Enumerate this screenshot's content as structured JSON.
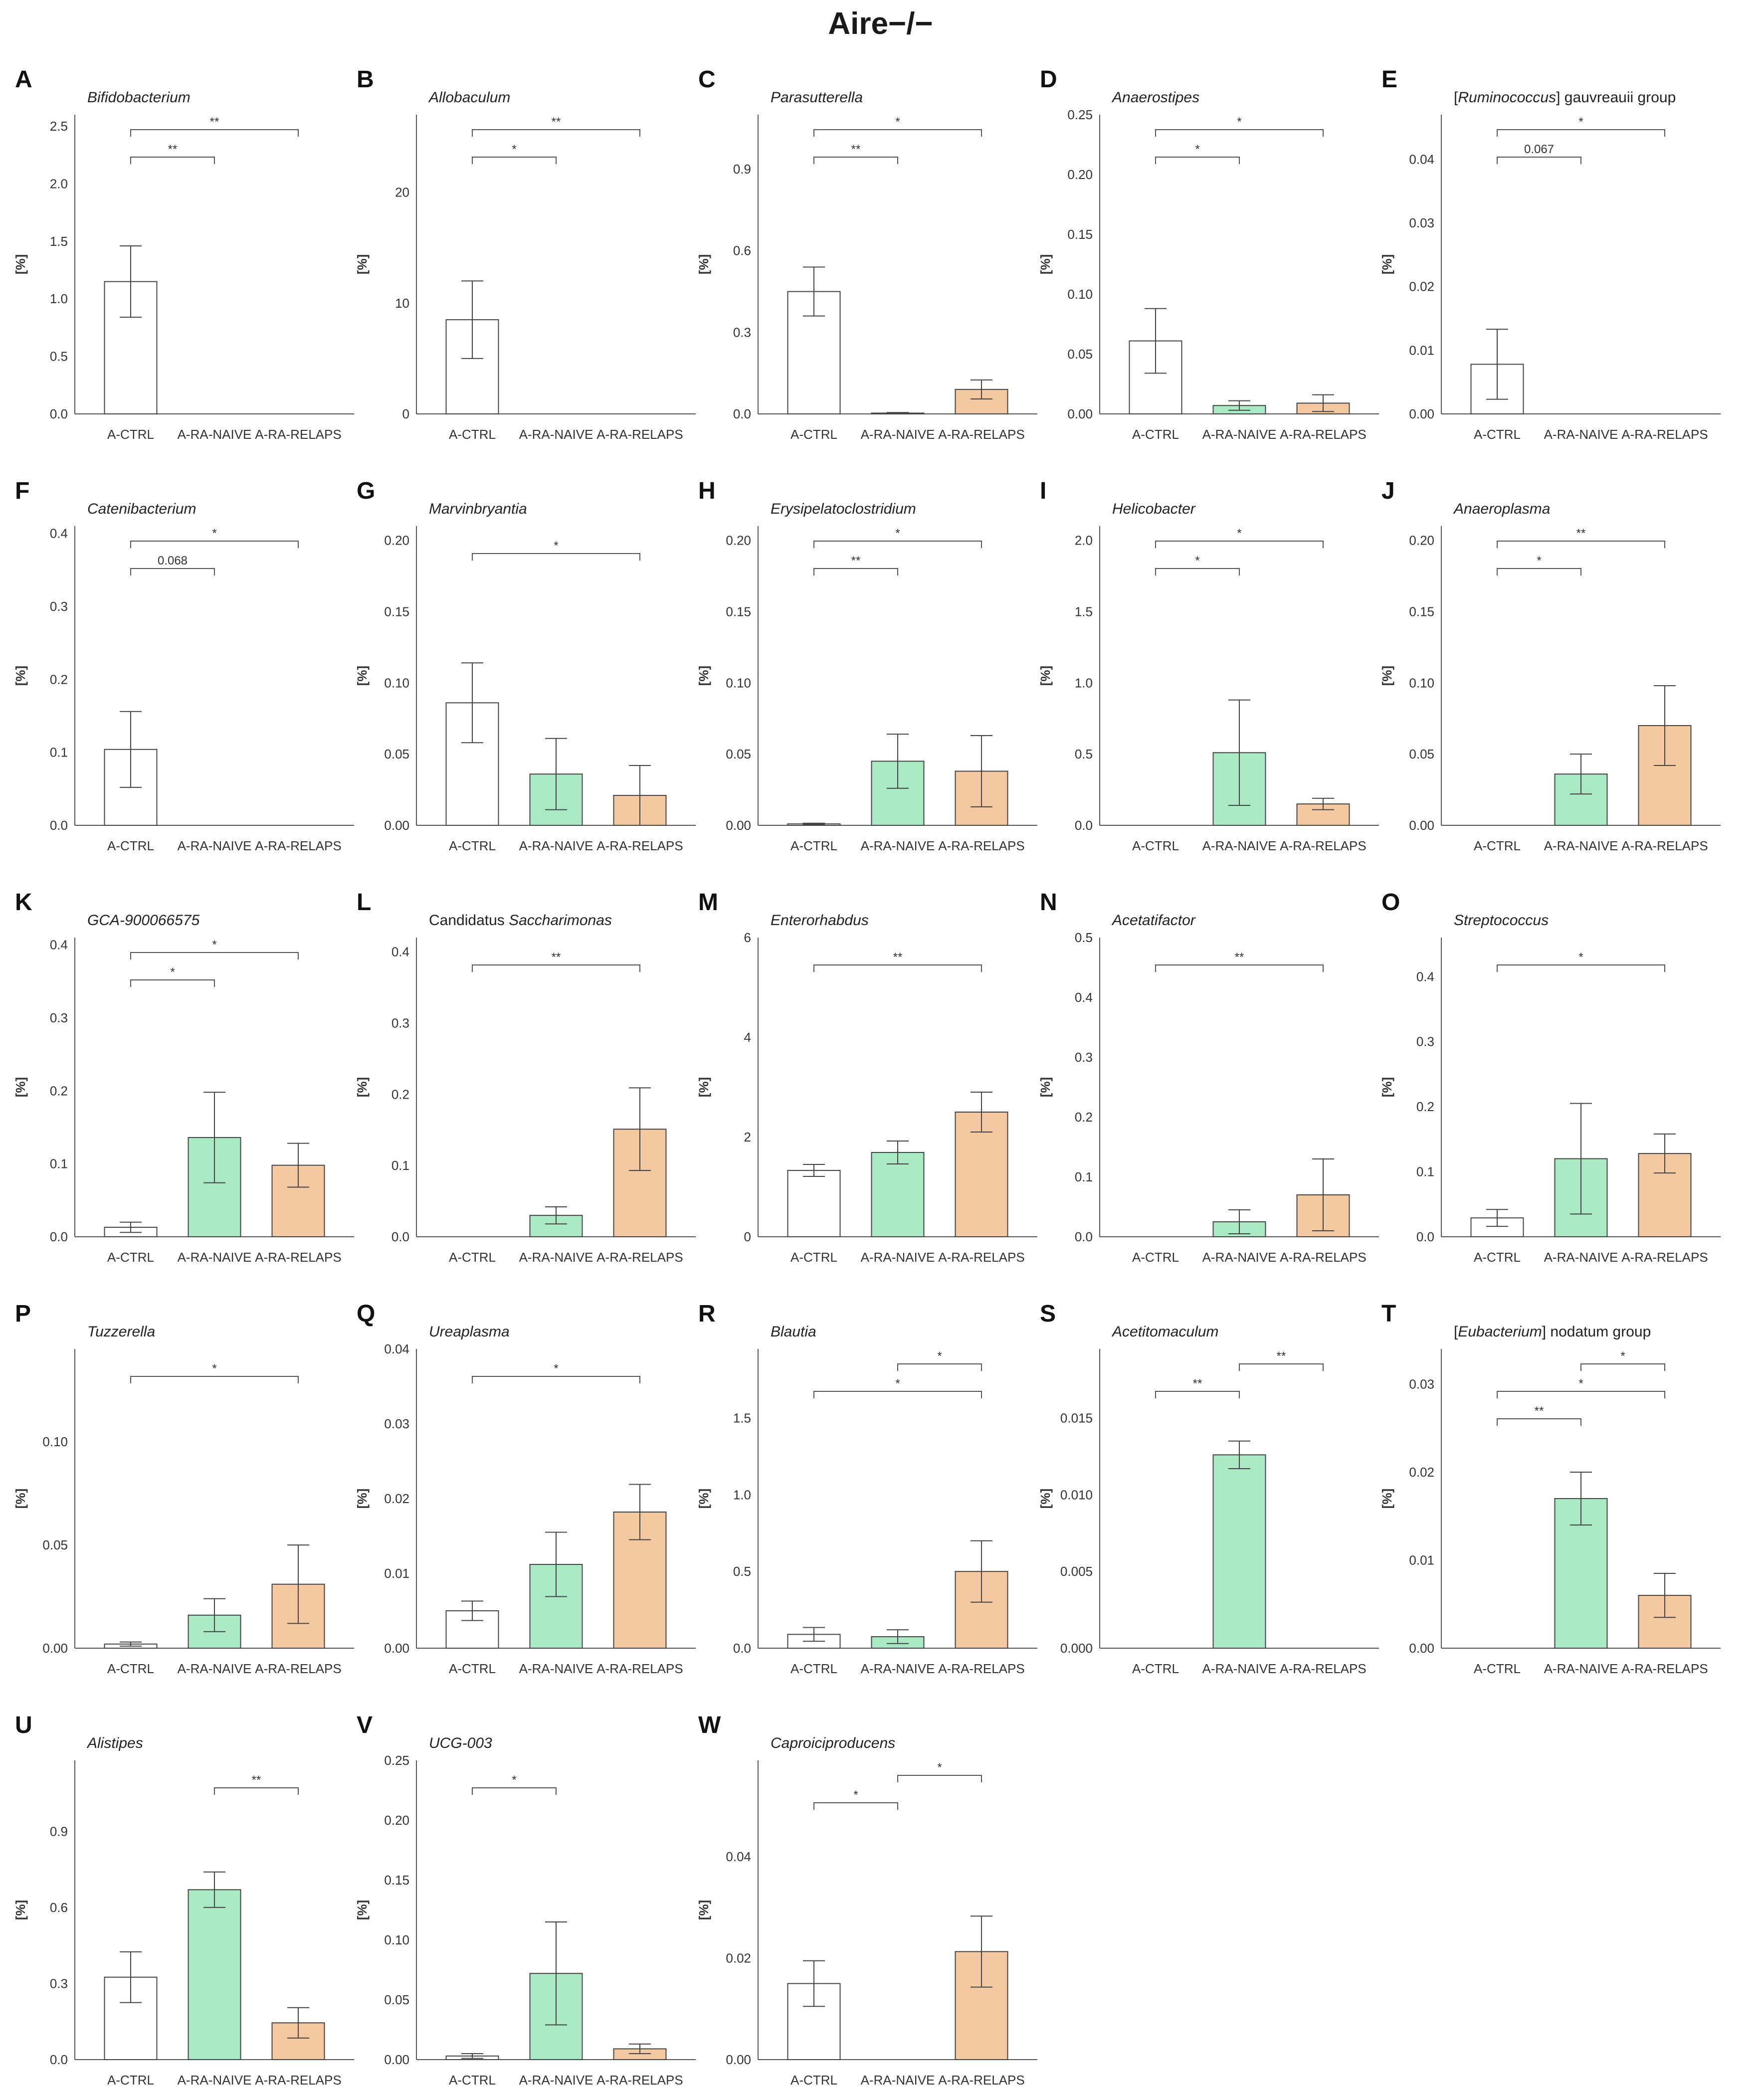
{
  "figure_title": "Aire−/−",
  "chart_data": [
    {
      "letter": "A",
      "type": "bar",
      "title": "Bifidobacterium",
      "title_style": "italic",
      "ylabel": "[%]",
      "categories": [
        "A-CTRL",
        "A-RA-NAIVE",
        "A-RA-RELAPS"
      ],
      "values": [
        1.15,
        0,
        0
      ],
      "errors": [
        0.31,
        0,
        0
      ],
      "ylim": [
        0,
        2.6
      ],
      "yticks": [
        "0.0",
        "0.5",
        "1.0",
        "1.5",
        "2.0",
        "2.5"
      ],
      "comparisons": [
        {
          "from": 0,
          "to": 1,
          "label": "**"
        },
        {
          "from": 0,
          "to": 2,
          "label": "**"
        }
      ]
    },
    {
      "letter": "B",
      "type": "bar",
      "title": "Allobaculum",
      "title_style": "italic",
      "ylabel": "[%]",
      "categories": [
        "A-CTRL",
        "A-RA-NAIVE",
        "A-RA-RELAPS"
      ],
      "values": [
        8.5,
        0,
        0
      ],
      "errors": [
        3.5,
        0,
        0
      ],
      "ylim": [
        0,
        27
      ],
      "yticks": [
        "0",
        "10",
        "20"
      ],
      "comparisons": [
        {
          "from": 0,
          "to": 1,
          "label": "*"
        },
        {
          "from": 0,
          "to": 2,
          "label": "**"
        }
      ]
    },
    {
      "letter": "C",
      "type": "bar",
      "title": "Parasutterella",
      "title_style": "italic",
      "ylabel": "[%]",
      "categories": [
        "A-CTRL",
        "A-RA-NAIVE",
        "A-RA-RELAPS"
      ],
      "values": [
        0.45,
        0.003,
        0.09
      ],
      "errors": [
        0.09,
        0.002,
        0.035
      ],
      "ylim": [
        0,
        1.1
      ],
      "yticks": [
        "0.0",
        "0.3",
        "0.6",
        "0.9"
      ],
      "comparisons": [
        {
          "from": 0,
          "to": 1,
          "label": "**"
        },
        {
          "from": 0,
          "to": 2,
          "label": "*"
        }
      ]
    },
    {
      "letter": "D",
      "type": "bar",
      "title": "Anaerostipes",
      "title_style": "italic",
      "ylabel": "[%]",
      "categories": [
        "A-CTRL",
        "A-RA-NAIVE",
        "A-RA-RELAPS"
      ],
      "values": [
        0.061,
        0.007,
        0.009
      ],
      "errors": [
        0.027,
        0.004,
        0.007
      ],
      "ylim": [
        0,
        0.25
      ],
      "yticks": [
        "0.00",
        "0.05",
        "0.10",
        "0.15",
        "0.20",
        "0.25"
      ],
      "comparisons": [
        {
          "from": 0,
          "to": 1,
          "label": "*"
        },
        {
          "from": 0,
          "to": 2,
          "label": "*"
        }
      ]
    },
    {
      "letter": "E",
      "type": "bar",
      "title": "[Ruminococcus] gauvreauii group",
      "title_style": "mixed",
      "ylabel": "[%]",
      "categories": [
        "A-CTRL",
        "A-RA-NAIVE",
        "A-RA-RELAPS"
      ],
      "values": [
        0.0078,
        0,
        0
      ],
      "errors": [
        0.0055,
        0,
        0
      ],
      "ylim": [
        0,
        0.047
      ],
      "yticks": [
        "0.00",
        "0.01",
        "0.02",
        "0.03",
        "0.04"
      ],
      "comparisons": [
        {
          "from": 0,
          "to": 1,
          "label": "0.067"
        },
        {
          "from": 0,
          "to": 2,
          "label": "*"
        }
      ]
    },
    {
      "letter": "F",
      "type": "bar",
      "title": "Catenibacterium",
      "title_style": "italic",
      "ylabel": "[%]",
      "categories": [
        "A-CTRL",
        "A-RA-NAIVE",
        "A-RA-RELAPS"
      ],
      "values": [
        0.104,
        0,
        0
      ],
      "errors": [
        0.052,
        0,
        0
      ],
      "ylim": [
        0,
        0.41
      ],
      "yticks": [
        "0.0",
        "0.1",
        "0.2",
        "0.3",
        "0.4"
      ],
      "comparisons": [
        {
          "from": 0,
          "to": 1,
          "label": "0.068"
        },
        {
          "from": 0,
          "to": 2,
          "label": "*"
        }
      ]
    },
    {
      "letter": "G",
      "type": "bar",
      "title": "Marvinbryantia",
      "title_style": "italic",
      "ylabel": "[%]",
      "categories": [
        "A-CTRL",
        "A-RA-NAIVE",
        "A-RA-RELAPS"
      ],
      "values": [
        0.086,
        0.036,
        0.021
      ],
      "errors": [
        0.028,
        0.025,
        0.021
      ],
      "ylim": [
        0,
        0.21
      ],
      "yticks": [
        "0.00",
        "0.05",
        "0.10",
        "0.15",
        "0.20"
      ],
      "comparisons": [
        {
          "from": 0,
          "to": 2,
          "label": "*"
        }
      ]
    },
    {
      "letter": "H",
      "type": "bar",
      "title": "Erysipelatoclostridium",
      "title_style": "italic",
      "ylabel": "[%]",
      "categories": [
        "A-CTRL",
        "A-RA-NAIVE",
        "A-RA-RELAPS"
      ],
      "values": [
        0.001,
        0.045,
        0.038
      ],
      "errors": [
        0.0005,
        0.019,
        0.025
      ],
      "ylim": [
        0,
        0.21
      ],
      "yticks": [
        "0.00",
        "0.05",
        "0.10",
        "0.15",
        "0.20"
      ],
      "comparisons": [
        {
          "from": 0,
          "to": 1,
          "label": "**"
        },
        {
          "from": 0,
          "to": 2,
          "label": "*"
        }
      ]
    },
    {
      "letter": "I",
      "type": "bar",
      "title": "Helicobacter",
      "title_style": "italic",
      "ylabel": "[%]",
      "categories": [
        "A-CTRL",
        "A-RA-NAIVE",
        "A-RA-RELAPS"
      ],
      "values": [
        0,
        0.51,
        0.15
      ],
      "errors": [
        0,
        0.37,
        0.04
      ],
      "ylim": [
        0,
        2.1
      ],
      "yticks": [
        "0.0",
        "0.5",
        "1.0",
        "1.5",
        "2.0"
      ],
      "comparisons": [
        {
          "from": 0,
          "to": 1,
          "label": "*"
        },
        {
          "from": 0,
          "to": 2,
          "label": "*"
        }
      ]
    },
    {
      "letter": "J",
      "type": "bar",
      "title": "Anaeroplasma",
      "title_style": "italic",
      "ylabel": "[%]",
      "categories": [
        "A-CTRL",
        "A-RA-NAIVE",
        "A-RA-RELAPS"
      ],
      "values": [
        0,
        0.036,
        0.07
      ],
      "errors": [
        0,
        0.014,
        0.028
      ],
      "ylim": [
        0,
        0.21
      ],
      "yticks": [
        "0.00",
        "0.05",
        "0.10",
        "0.15",
        "0.20"
      ],
      "comparisons": [
        {
          "from": 0,
          "to": 1,
          "label": "*"
        },
        {
          "from": 0,
          "to": 2,
          "label": "**"
        }
      ]
    },
    {
      "letter": "K",
      "type": "bar",
      "title": "GCA-900066575",
      "title_style": "italic",
      "ylabel": "[%]",
      "categories": [
        "A-CTRL",
        "A-RA-NAIVE",
        "A-RA-RELAPS"
      ],
      "values": [
        0.013,
        0.136,
        0.098
      ],
      "errors": [
        0.007,
        0.062,
        0.03
      ],
      "ylim": [
        0,
        0.41
      ],
      "yticks": [
        "0.0",
        "0.1",
        "0.2",
        "0.3",
        "0.4"
      ],
      "comparisons": [
        {
          "from": 0,
          "to": 1,
          "label": "*"
        },
        {
          "from": 0,
          "to": 2,
          "label": "*"
        }
      ]
    },
    {
      "letter": "L",
      "type": "bar",
      "title": "Candidatus Saccharimonas",
      "title_style": "mixed",
      "ylabel": "[%]",
      "categories": [
        "A-CTRL",
        "A-RA-NAIVE",
        "A-RA-RELAPS"
      ],
      "values": [
        0,
        0.03,
        0.151
      ],
      "errors": [
        0,
        0.012,
        0.058
      ],
      "ylim": [
        0,
        0.42
      ],
      "yticks": [
        "0.0",
        "0.1",
        "0.2",
        "0.3",
        "0.4"
      ],
      "comparisons": [
        {
          "from": 0,
          "to": 2,
          "label": "**"
        }
      ]
    },
    {
      "letter": "M",
      "type": "bar",
      "title": "Enterorhabdus",
      "title_style": "italic",
      "ylabel": "[%]",
      "categories": [
        "A-CTRL",
        "A-RA-NAIVE",
        "A-RA-RELAPS"
      ],
      "values": [
        1.33,
        1.69,
        2.5
      ],
      "errors": [
        0.12,
        0.23,
        0.4
      ],
      "ylim": [
        0,
        6
      ],
      "yticks": [
        "0",
        "2",
        "4",
        "6"
      ],
      "comparisons": [
        {
          "from": 0,
          "to": 2,
          "label": "**"
        }
      ]
    },
    {
      "letter": "N",
      "type": "bar",
      "title": "Acetatifactor",
      "title_style": "italic",
      "ylabel": "[%]",
      "categories": [
        "A-CTRL",
        "A-RA-NAIVE",
        "A-RA-RELAPS"
      ],
      "values": [
        0,
        0.025,
        0.07
      ],
      "errors": [
        0,
        0.02,
        0.06
      ],
      "ylim": [
        0,
        0.5
      ],
      "yticks": [
        "0.0",
        "0.1",
        "0.2",
        "0.3",
        "0.4",
        "0.5"
      ],
      "comparisons": [
        {
          "from": 0,
          "to": 2,
          "label": "**"
        }
      ]
    },
    {
      "letter": "O",
      "type": "bar",
      "title": "Streptococcus",
      "title_style": "italic",
      "ylabel": "[%]",
      "categories": [
        "A-CTRL",
        "A-RA-NAIVE",
        "A-RA-RELAPS"
      ],
      "values": [
        0.029,
        0.12,
        0.128
      ],
      "errors": [
        0.013,
        0.085,
        0.03
      ],
      "ylim": [
        0,
        0.46
      ],
      "yticks": [
        "0.0",
        "0.1",
        "0.2",
        "0.3",
        "0.4"
      ],
      "comparisons": [
        {
          "from": 0,
          "to": 2,
          "label": "*"
        }
      ]
    },
    {
      "letter": "P",
      "type": "bar",
      "title": "Tuzzerella",
      "title_style": "italic",
      "ylabel": "[%]",
      "categories": [
        "A-CTRL",
        "A-RA-NAIVE",
        "A-RA-RELAPS"
      ],
      "values": [
        0.002,
        0.016,
        0.031
      ],
      "errors": [
        0.001,
        0.008,
        0.019
      ],
      "ylim": [
        0,
        0.145
      ],
      "yticks": [
        "0.00",
        "0.05",
        "0.10"
      ],
      "comparisons": [
        {
          "from": 0,
          "to": 2,
          "label": "*"
        }
      ]
    },
    {
      "letter": "Q",
      "type": "bar",
      "title": "Ureaplasma",
      "title_style": "italic",
      "ylabel": "[%]",
      "categories": [
        "A-CTRL",
        "A-RA-NAIVE",
        "A-RA-RELAPS"
      ],
      "values": [
        0.005,
        0.0112,
        0.0182
      ],
      "errors": [
        0.0013,
        0.0043,
        0.0037
      ],
      "ylim": [
        0,
        0.04
      ],
      "yticks": [
        "0.00",
        "0.01",
        "0.02",
        "0.03",
        "0.04"
      ],
      "comparisons": [
        {
          "from": 0,
          "to": 2,
          "label": "*"
        }
      ]
    },
    {
      "letter": "R",
      "type": "bar",
      "title": "Blautia",
      "title_style": "italic",
      "ylabel": "[%]",
      "categories": [
        "A-CTRL",
        "A-RA-NAIVE",
        "A-RA-RELAPS"
      ],
      "values": [
        0.09,
        0.075,
        0.5
      ],
      "errors": [
        0.045,
        0.045,
        0.2
      ],
      "ylim": [
        0,
        1.95
      ],
      "yticks": [
        "0.0",
        "0.5",
        "1.0",
        "1.5"
      ],
      "comparisons": [
        {
          "from": 0,
          "to": 2,
          "label": "*"
        },
        {
          "from": 1,
          "to": 2,
          "label": "*"
        }
      ]
    },
    {
      "letter": "S",
      "type": "bar",
      "title": "Acetitomaculum",
      "title_style": "italic",
      "ylabel": "[%]",
      "categories": [
        "A-CTRL",
        "A-RA-NAIVE",
        "A-RA-RELAPS"
      ],
      "values": [
        0,
        0.0126,
        0
      ],
      "errors": [
        0,
        0.0009,
        0
      ],
      "ylim": [
        0,
        0.0195
      ],
      "yticks": [
        "0.000",
        "0.005",
        "0.010",
        "0.015"
      ],
      "comparisons": [
        {
          "from": 0,
          "to": 1,
          "label": "**"
        },
        {
          "from": 1,
          "to": 2,
          "label": "**"
        }
      ]
    },
    {
      "letter": "T",
      "type": "bar",
      "title": "[Eubacterium] nodatum group",
      "title_style": "mixed",
      "ylabel": "[%]",
      "categories": [
        "A-CTRL",
        "A-RA-NAIVE",
        "A-RA-RELAPS"
      ],
      "values": [
        0,
        0.017,
        0.006
      ],
      "errors": [
        0,
        0.003,
        0.0025
      ],
      "ylim": [
        0,
        0.034
      ],
      "yticks": [
        "0.00",
        "0.01",
        "0.02",
        "0.03"
      ],
      "comparisons": [
        {
          "from": 0,
          "to": 1,
          "label": "**"
        },
        {
          "from": 0,
          "to": 2,
          "label": "*"
        },
        {
          "from": 1,
          "to": 2,
          "label": "*"
        }
      ]
    },
    {
      "letter": "U",
      "type": "bar",
      "title": "Alistipes",
      "title_style": "italic",
      "ylabel": "[%]",
      "categories": [
        "A-CTRL",
        "A-RA-NAIVE",
        "A-RA-RELAPS"
      ],
      "values": [
        0.325,
        0.67,
        0.145
      ],
      "errors": [
        0.1,
        0.07,
        0.06
      ],
      "ylim": [
        0,
        1.18
      ],
      "yticks": [
        "0.0",
        "0.3",
        "0.6",
        "0.9"
      ],
      "comparisons": [
        {
          "from": 1,
          "to": 2,
          "label": "**"
        }
      ]
    },
    {
      "letter": "V",
      "type": "bar",
      "title": "UCG-003",
      "title_style": "italic",
      "ylabel": "[%]",
      "categories": [
        "A-CTRL",
        "A-RA-NAIVE",
        "A-RA-RELAPS"
      ],
      "values": [
        0.003,
        0.072,
        0.009
      ],
      "errors": [
        0.002,
        0.043,
        0.004
      ],
      "ylim": [
        0,
        0.25
      ],
      "yticks": [
        "0.00",
        "0.05",
        "0.10",
        "0.15",
        "0.20",
        "0.25"
      ],
      "comparisons": [
        {
          "from": 0,
          "to": 1,
          "label": "*"
        }
      ]
    },
    {
      "letter": "W",
      "type": "bar",
      "title": "Caproiciproducens",
      "title_style": "italic",
      "ylabel": "[%]",
      "categories": [
        "A-CTRL",
        "A-RA-NAIVE",
        "A-RA-RELAPS"
      ],
      "values": [
        0.015,
        0,
        0.0213
      ],
      "errors": [
        0.0045,
        0,
        0.007
      ],
      "ylim": [
        0,
        0.059
      ],
      "yticks": [
        "0.00",
        "0.02",
        "0.04"
      ],
      "comparisons": [
        {
          "from": 0,
          "to": 1,
          "label": "*"
        },
        {
          "from": 1,
          "to": 2,
          "label": "*"
        }
      ]
    }
  ],
  "colors": {
    "ctrl": "#ffffff",
    "naive": "#a9e9c3",
    "relaps": "#f4c8a1",
    "stroke": "#444444",
    "axis": "#555555"
  }
}
